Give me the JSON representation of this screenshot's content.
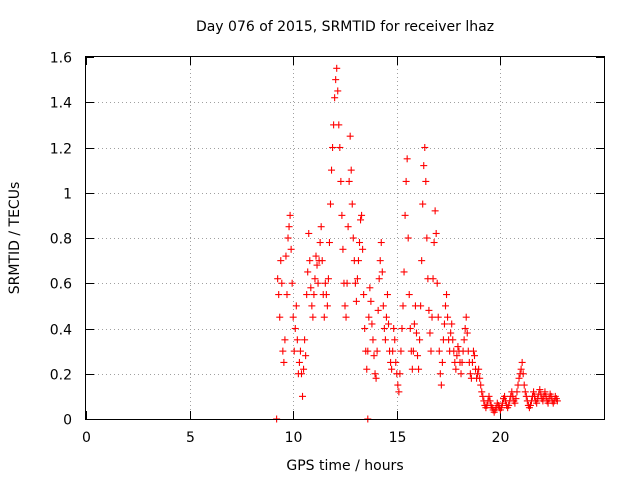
{
  "chart_data": {
    "type": "scatter",
    "title": "Day 076 of 2015, SRMTID for receiver lhaz",
    "xlabel": "GPS time / hours",
    "ylabel": "SRMTID / TECUs",
    "xlim": [
      0,
      25
    ],
    "ylim": [
      0,
      1.6
    ],
    "xticks": [
      0,
      5,
      10,
      15,
      20
    ],
    "xtick_labels": [
      "0",
      "5",
      "10",
      "15",
      "20"
    ],
    "yticks": [
      0,
      0.2,
      0.4,
      0.6,
      0.8,
      1.0,
      1.2,
      1.4,
      1.6
    ],
    "ytick_labels": [
      "0",
      "0.2",
      "0.4",
      "0.6",
      "0.8",
      "1",
      "1.2",
      "1.4",
      "1.6"
    ],
    "grid": true,
    "marker": "plus",
    "color": "#ff0000",
    "series": [
      {
        "name": "SRMTID",
        "points": [
          [
            9.2,
            0.0
          ],
          [
            13.6,
            0.0
          ],
          [
            9.25,
            0.62
          ],
          [
            9.3,
            0.55
          ],
          [
            9.35,
            0.45
          ],
          [
            9.4,
            0.7
          ],
          [
            9.45,
            0.6
          ],
          [
            9.5,
            0.3
          ],
          [
            9.55,
            0.25
          ],
          [
            9.6,
            0.35
          ],
          [
            9.65,
            0.72
          ],
          [
            9.7,
            0.55
          ],
          [
            9.75,
            0.8
          ],
          [
            9.8,
            0.85
          ],
          [
            9.85,
            0.9
          ],
          [
            9.9,
            0.75
          ],
          [
            9.95,
            0.6
          ],
          [
            10.0,
            0.45
          ],
          [
            10.05,
            0.3
          ],
          [
            10.1,
            0.4
          ],
          [
            10.15,
            0.5
          ],
          [
            10.2,
            0.35
          ],
          [
            10.25,
            0.2
          ],
          [
            10.3,
            0.25
          ],
          [
            10.35,
            0.3
          ],
          [
            10.4,
            0.2
          ],
          [
            10.45,
            0.1
          ],
          [
            10.5,
            0.22
          ],
          [
            10.55,
            0.35
          ],
          [
            10.6,
            0.28
          ],
          [
            10.65,
            0.55
          ],
          [
            10.7,
            0.65
          ],
          [
            10.75,
            0.82
          ],
          [
            10.8,
            0.7
          ],
          [
            10.85,
            0.58
          ],
          [
            10.9,
            0.5
          ],
          [
            10.95,
            0.45
          ],
          [
            11.0,
            0.55
          ],
          [
            11.05,
            0.62
          ],
          [
            11.1,
            0.72
          ],
          [
            11.15,
            0.68
          ],
          [
            11.2,
            0.6
          ],
          [
            11.25,
            0.7
          ],
          [
            11.3,
            0.78
          ],
          [
            11.35,
            0.85
          ],
          [
            11.4,
            0.7
          ],
          [
            11.45,
            0.55
          ],
          [
            11.5,
            0.45
          ],
          [
            11.55,
            0.6
          ],
          [
            11.6,
            0.55
          ],
          [
            11.65,
            0.5
          ],
          [
            11.7,
            0.62
          ],
          [
            11.75,
            0.78
          ],
          [
            11.8,
            0.95
          ],
          [
            11.85,
            1.1
          ],
          [
            11.9,
            1.2
          ],
          [
            11.95,
            1.3
          ],
          [
            12.0,
            1.42
          ],
          [
            12.05,
            1.5
          ],
          [
            12.1,
            1.55
          ],
          [
            12.15,
            1.45
          ],
          [
            12.2,
            1.3
          ],
          [
            12.25,
            1.2
          ],
          [
            12.3,
            1.05
          ],
          [
            12.35,
            0.9
          ],
          [
            12.4,
            0.75
          ],
          [
            12.45,
            0.6
          ],
          [
            12.5,
            0.5
          ],
          [
            12.55,
            0.45
          ],
          [
            12.6,
            0.6
          ],
          [
            12.65,
            0.85
          ],
          [
            12.7,
            1.05
          ],
          [
            12.75,
            1.25
          ],
          [
            12.8,
            1.1
          ],
          [
            12.85,
            0.95
          ],
          [
            12.9,
            0.8
          ],
          [
            12.95,
            0.7
          ],
          [
            13.0,
            0.6
          ],
          [
            13.05,
            0.52
          ],
          [
            13.1,
            0.62
          ],
          [
            13.15,
            0.7
          ],
          [
            13.2,
            0.78
          ],
          [
            13.25,
            0.88
          ],
          [
            13.3,
            0.9
          ],
          [
            13.35,
            0.75
          ],
          [
            13.4,
            0.55
          ],
          [
            13.45,
            0.4
          ],
          [
            13.5,
            0.3
          ],
          [
            13.55,
            0.22
          ],
          [
            13.6,
            0.3
          ],
          [
            13.65,
            0.45
          ],
          [
            13.7,
            0.58
          ],
          [
            13.75,
            0.52
          ],
          [
            13.8,
            0.42
          ],
          [
            13.85,
            0.35
          ],
          [
            13.9,
            0.28
          ],
          [
            13.95,
            0.2
          ],
          [
            14.0,
            0.18
          ],
          [
            14.05,
            0.3
          ],
          [
            14.1,
            0.48
          ],
          [
            14.15,
            0.62
          ],
          [
            14.2,
            0.7
          ],
          [
            14.25,
            0.78
          ],
          [
            14.3,
            0.65
          ],
          [
            14.35,
            0.5
          ],
          [
            14.4,
            0.4
          ],
          [
            14.45,
            0.35
          ],
          [
            14.5,
            0.45
          ],
          [
            14.55,
            0.55
          ],
          [
            14.6,
            0.42
          ],
          [
            14.65,
            0.3
          ],
          [
            14.7,
            0.25
          ],
          [
            14.75,
            0.22
          ],
          [
            14.8,
            0.3
          ],
          [
            14.85,
            0.4
          ],
          [
            14.9,
            0.35
          ],
          [
            14.95,
            0.25
          ],
          [
            15.0,
            0.2
          ],
          [
            15.05,
            0.15
          ],
          [
            15.1,
            0.12
          ],
          [
            15.15,
            0.2
          ],
          [
            15.2,
            0.3
          ],
          [
            15.25,
            0.4
          ],
          [
            15.3,
            0.5
          ],
          [
            15.35,
            0.65
          ],
          [
            15.4,
            0.9
          ],
          [
            15.45,
            1.05
          ],
          [
            15.5,
            1.15
          ],
          [
            15.55,
            0.8
          ],
          [
            15.6,
            0.55
          ],
          [
            15.65,
            0.4
          ],
          [
            15.7,
            0.3
          ],
          [
            15.75,
            0.22
          ],
          [
            15.8,
            0.3
          ],
          [
            15.85,
            0.42
          ],
          [
            15.9,
            0.5
          ],
          [
            15.95,
            0.38
          ],
          [
            16.0,
            0.28
          ],
          [
            16.05,
            0.22
          ],
          [
            16.1,
            0.35
          ],
          [
            16.15,
            0.5
          ],
          [
            16.2,
            0.7
          ],
          [
            16.25,
            0.95
          ],
          [
            16.3,
            1.12
          ],
          [
            16.35,
            1.2
          ],
          [
            16.4,
            1.05
          ],
          [
            16.45,
            0.8
          ],
          [
            16.5,
            0.62
          ],
          [
            16.55,
            0.48
          ],
          [
            16.6,
            0.38
          ],
          [
            16.65,
            0.3
          ],
          [
            16.7,
            0.45
          ],
          [
            16.75,
            0.62
          ],
          [
            16.8,
            0.78
          ],
          [
            16.85,
            0.92
          ],
          [
            16.9,
            0.82
          ],
          [
            16.95,
            0.6
          ],
          [
            17.0,
            0.45
          ],
          [
            17.05,
            0.3
          ],
          [
            17.1,
            0.2
          ],
          [
            17.15,
            0.15
          ],
          [
            17.2,
            0.25
          ],
          [
            17.25,
            0.35
          ],
          [
            17.3,
            0.42
          ],
          [
            17.35,
            0.5
          ],
          [
            17.4,
            0.55
          ],
          [
            17.45,
            0.45
          ],
          [
            17.5,
            0.35
          ],
          [
            17.55,
            0.3
          ],
          [
            17.6,
            0.38
          ],
          [
            17.65,
            0.42
          ],
          [
            17.7,
            0.35
          ],
          [
            17.75,
            0.3
          ],
          [
            17.8,
            0.25
          ],
          [
            17.85,
            0.22
          ],
          [
            17.9,
            0.28
          ],
          [
            17.95,
            0.32
          ],
          [
            18.0,
            0.3
          ],
          [
            18.05,
            0.25
          ],
          [
            18.1,
            0.2
          ],
          [
            18.15,
            0.25
          ],
          [
            18.2,
            0.3
          ],
          [
            18.25,
            0.35
          ],
          [
            18.3,
            0.4
          ],
          [
            18.35,
            0.45
          ],
          [
            18.4,
            0.38
          ],
          [
            18.45,
            0.3
          ],
          [
            18.5,
            0.25
          ],
          [
            18.55,
            0.2
          ],
          [
            18.6,
            0.18
          ],
          [
            18.65,
            0.25
          ],
          [
            18.7,
            0.3
          ],
          [
            18.75,
            0.28
          ],
          [
            18.8,
            0.22
          ],
          [
            18.85,
            0.18
          ],
          [
            18.9,
            0.2
          ],
          [
            18.95,
            0.22
          ],
          [
            19.0,
            0.18
          ],
          [
            19.05,
            0.15
          ],
          [
            19.1,
            0.12
          ],
          [
            19.15,
            0.1
          ],
          [
            19.2,
            0.08
          ],
          [
            19.25,
            0.06
          ],
          [
            19.3,
            0.05
          ],
          [
            19.35,
            0.06
          ],
          [
            19.4,
            0.08
          ],
          [
            19.45,
            0.1
          ],
          [
            19.5,
            0.08
          ],
          [
            19.55,
            0.06
          ],
          [
            19.6,
            0.05
          ],
          [
            19.65,
            0.04
          ],
          [
            19.7,
            0.03
          ],
          [
            19.75,
            0.04
          ],
          [
            19.8,
            0.05
          ],
          [
            19.85,
            0.07
          ],
          [
            19.9,
            0.06
          ],
          [
            19.95,
            0.05
          ],
          [
            20.0,
            0.04
          ],
          [
            20.05,
            0.05
          ],
          [
            20.1,
            0.07
          ],
          [
            20.15,
            0.09
          ],
          [
            20.2,
            0.1
          ],
          [
            20.25,
            0.08
          ],
          [
            20.3,
            0.06
          ],
          [
            20.35,
            0.05
          ],
          [
            20.4,
            0.06
          ],
          [
            20.45,
            0.08
          ],
          [
            20.5,
            0.1
          ],
          [
            20.55,
            0.12
          ],
          [
            20.6,
            0.1
          ],
          [
            20.65,
            0.08
          ],
          [
            20.7,
            0.07
          ],
          [
            20.75,
            0.09
          ],
          [
            20.8,
            0.12
          ],
          [
            20.85,
            0.15
          ],
          [
            20.9,
            0.18
          ],
          [
            20.95,
            0.2
          ],
          [
            21.0,
            0.22
          ],
          [
            21.05,
            0.25
          ],
          [
            21.1,
            0.2
          ],
          [
            21.15,
            0.15
          ],
          [
            21.2,
            0.12
          ],
          [
            21.25,
            0.1
          ],
          [
            21.3,
            0.08
          ],
          [
            21.35,
            0.06
          ],
          [
            21.4,
            0.05
          ],
          [
            21.45,
            0.06
          ],
          [
            21.5,
            0.08
          ],
          [
            21.55,
            0.1
          ],
          [
            21.6,
            0.12
          ],
          [
            21.65,
            0.1
          ],
          [
            21.7,
            0.08
          ],
          [
            21.75,
            0.07
          ],
          [
            21.8,
            0.09
          ],
          [
            21.85,
            0.11
          ],
          [
            21.9,
            0.13
          ],
          [
            21.95,
            0.11
          ],
          [
            22.0,
            0.09
          ],
          [
            22.05,
            0.08
          ],
          [
            22.1,
            0.1
          ],
          [
            22.15,
            0.12
          ],
          [
            22.2,
            0.1
          ],
          [
            22.25,
            0.08
          ],
          [
            22.3,
            0.07
          ],
          [
            22.35,
            0.09
          ],
          [
            22.4,
            0.11
          ],
          [
            22.45,
            0.1
          ],
          [
            22.5,
            0.08
          ],
          [
            22.55,
            0.07
          ],
          [
            22.6,
            0.08
          ],
          [
            22.65,
            0.1
          ],
          [
            22.7,
            0.09
          ],
          [
            22.75,
            0.08
          ]
        ]
      }
    ]
  }
}
